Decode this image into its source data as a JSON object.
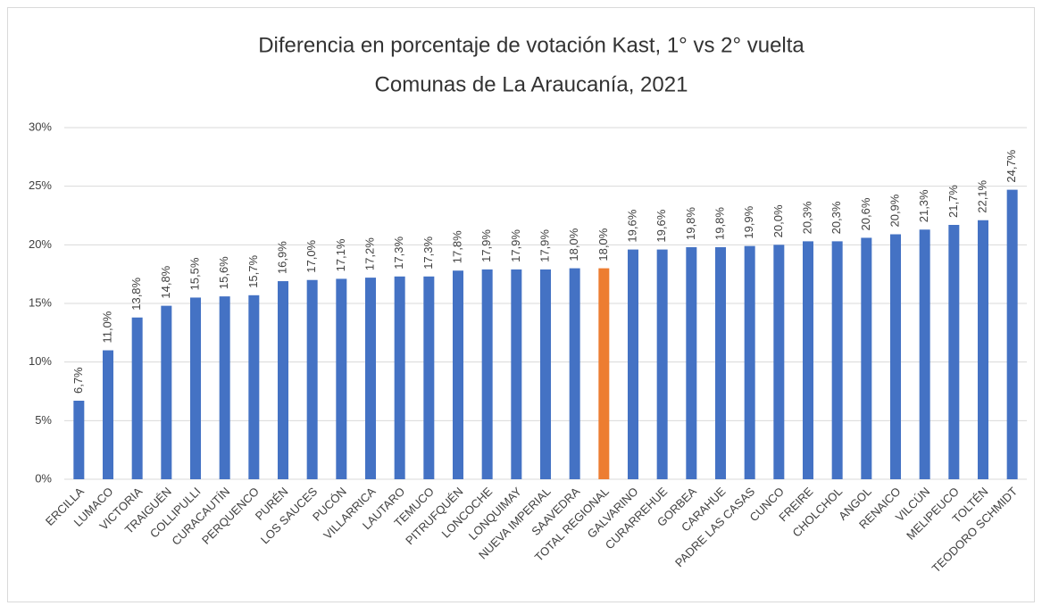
{
  "chart_data": {
    "type": "bar",
    "title": "Diferencia en porcentaje de votación Kast, 1° vs 2° vuelta",
    "subtitle": "Comunas de La Araucanía, 2021",
    "categories": [
      "ERCILLA",
      "LUMACO",
      "VICTORIA",
      "TRAIGUÉN",
      "COLLIPULLI",
      "CURACAUTÍN",
      "PERQUENCO",
      "PURÉN",
      "LOS SAUCES",
      "PUCÓN",
      "VILLARRICA",
      "LAUTARO",
      "TEMUCO",
      "PITRUFQUÉN",
      "LONCOCHE",
      "LONQUIMAY",
      "NUEVA IMPERIAL",
      "SAAVEDRA",
      "TOTAL REGIONAL",
      "GALVARINO",
      "CURARREHUE",
      "GORBEA",
      "CARAHUE",
      "PADRE LAS CASAS",
      "CUNCO",
      "FREIRE",
      "CHOLCHOL",
      "ANGOL",
      "RENAICO",
      "VILCÚN",
      "MELIPEUCO",
      "TOLTÉN",
      "TEODORO SCHMIDT"
    ],
    "values": [
      6.7,
      11.0,
      13.8,
      14.8,
      15.5,
      15.6,
      15.7,
      16.9,
      17.0,
      17.1,
      17.2,
      17.3,
      17.3,
      17.8,
      17.9,
      17.9,
      17.9,
      18.0,
      18.0,
      19.6,
      19.6,
      19.8,
      19.8,
      19.9,
      20.0,
      20.3,
      20.3,
      20.6,
      20.9,
      21.3,
      21.7,
      22.1,
      24.7
    ],
    "value_labels": [
      "6,7%",
      "11,0%",
      "13,8%",
      "14,8%",
      "15,5%",
      "15,6%",
      "15,7%",
      "16,9%",
      "17,0%",
      "17,1%",
      "17,2%",
      "17,3%",
      "17,3%",
      "17,8%",
      "17,9%",
      "17,9%",
      "17,9%",
      "18,0%",
      "18,0%",
      "19,6%",
      "19,6%",
      "19,8%",
      "19,8%",
      "19,9%",
      "20,0%",
      "20,3%",
      "20,3%",
      "20,6%",
      "20,9%",
      "21,3%",
      "21,7%",
      "22,1%",
      "24,7%"
    ],
    "colors": [
      "#4472c4",
      "#4472c4",
      "#4472c4",
      "#4472c4",
      "#4472c4",
      "#4472c4",
      "#4472c4",
      "#4472c4",
      "#4472c4",
      "#4472c4",
      "#4472c4",
      "#4472c4",
      "#4472c4",
      "#4472c4",
      "#4472c4",
      "#4472c4",
      "#4472c4",
      "#4472c4",
      "#ed7d31",
      "#4472c4",
      "#4472c4",
      "#4472c4",
      "#4472c4",
      "#4472c4",
      "#4472c4",
      "#4472c4",
      "#4472c4",
      "#4472c4",
      "#4472c4",
      "#4472c4",
      "#4472c4",
      "#4472c4",
      "#4472c4"
    ],
    "ylim": [
      0,
      30
    ],
    "yticks": [
      {
        "value": 0,
        "label": "0%"
      },
      {
        "value": 5,
        "label": "5%"
      },
      {
        "value": 10,
        "label": "10%"
      },
      {
        "value": 15,
        "label": "15%"
      },
      {
        "value": 20,
        "label": "20%"
      },
      {
        "value": 25,
        "label": "25%"
      },
      {
        "value": 30,
        "label": "30%"
      }
    ],
    "grid": true
  }
}
